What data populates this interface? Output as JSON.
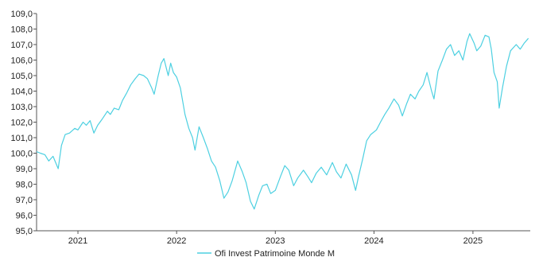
{
  "chart_data": {
    "type": "line",
    "title": "",
    "xlabel": "",
    "ylabel": "",
    "x_range": [
      "2020-08-01",
      "2025-08-01"
    ],
    "ylim": [
      95.0,
      109.0
    ],
    "y_ticks": [
      "95,0",
      "96,0",
      "97,0",
      "98,0",
      "99,0",
      "100,0",
      "101,0",
      "102,0",
      "103,0",
      "104,0",
      "105,0",
      "106,0",
      "107,0",
      "108,0",
      "109,0"
    ],
    "x_ticks": [
      {
        "date": "2021-01-01",
        "label": "2021"
      },
      {
        "date": "2022-01-01",
        "label": "2022"
      },
      {
        "date": "2023-01-01",
        "label": "2023"
      },
      {
        "date": "2024-01-01",
        "label": "2024"
      },
      {
        "date": "2025-01-01",
        "label": "2025"
      }
    ],
    "grid": false,
    "legend": "bottom",
    "series": [
      {
        "name": "Ofi Invest Patrimoine Monde M",
        "color": "#4dd0e1",
        "points": [
          [
            "2020-08-01",
            100.1
          ],
          [
            "2020-08-15",
            100.0
          ],
          [
            "2020-09-01",
            99.9
          ],
          [
            "2020-09-15",
            99.5
          ],
          [
            "2020-10-01",
            99.8
          ],
          [
            "2020-10-20",
            99.0
          ],
          [
            "2020-11-01",
            100.5
          ],
          [
            "2020-11-15",
            101.2
          ],
          [
            "2020-12-01",
            101.3
          ],
          [
            "2020-12-20",
            101.6
          ],
          [
            "2021-01-01",
            101.5
          ],
          [
            "2021-01-20",
            102.0
          ],
          [
            "2021-02-01",
            101.8
          ],
          [
            "2021-02-15",
            102.1
          ],
          [
            "2021-03-01",
            101.3
          ],
          [
            "2021-03-15",
            101.8
          ],
          [
            "2021-04-01",
            102.2
          ],
          [
            "2021-04-20",
            102.7
          ],
          [
            "2021-05-01",
            102.5
          ],
          [
            "2021-05-15",
            102.9
          ],
          [
            "2021-06-01",
            102.8
          ],
          [
            "2021-06-15",
            103.4
          ],
          [
            "2021-07-01",
            103.9
          ],
          [
            "2021-07-15",
            104.4
          ],
          [
            "2021-08-01",
            104.8
          ],
          [
            "2021-08-15",
            105.1
          ],
          [
            "2021-09-01",
            105.0
          ],
          [
            "2021-09-15",
            104.8
          ],
          [
            "2021-10-01",
            104.2
          ],
          [
            "2021-10-10",
            103.8
          ],
          [
            "2021-10-25",
            105.0
          ],
          [
            "2021-11-05",
            105.8
          ],
          [
            "2021-11-15",
            106.1
          ],
          [
            "2021-11-25",
            105.4
          ],
          [
            "2021-12-01",
            105.0
          ],
          [
            "2021-12-10",
            105.8
          ],
          [
            "2021-12-20",
            105.2
          ],
          [
            "2022-01-01",
            104.9
          ],
          [
            "2022-01-15",
            104.2
          ],
          [
            "2022-02-01",
            102.5
          ],
          [
            "2022-02-15",
            101.6
          ],
          [
            "2022-03-01",
            101.0
          ],
          [
            "2022-03-10",
            100.2
          ],
          [
            "2022-03-25",
            101.7
          ],
          [
            "2022-04-10",
            101.0
          ],
          [
            "2022-04-25",
            100.3
          ],
          [
            "2022-05-10",
            99.5
          ],
          [
            "2022-05-25",
            99.1
          ],
          [
            "2022-06-10",
            98.2
          ],
          [
            "2022-06-25",
            97.1
          ],
          [
            "2022-07-10",
            97.5
          ],
          [
            "2022-07-25",
            98.2
          ],
          [
            "2022-08-15",
            99.5
          ],
          [
            "2022-09-01",
            98.8
          ],
          [
            "2022-09-15",
            98.1
          ],
          [
            "2022-10-01",
            96.9
          ],
          [
            "2022-10-15",
            96.4
          ],
          [
            "2022-11-01",
            97.3
          ],
          [
            "2022-11-15",
            97.9
          ],
          [
            "2022-12-01",
            98.0
          ],
          [
            "2022-12-15",
            97.4
          ],
          [
            "2023-01-01",
            97.6
          ],
          [
            "2023-01-20",
            98.5
          ],
          [
            "2023-02-05",
            99.2
          ],
          [
            "2023-02-20",
            98.9
          ],
          [
            "2023-03-10",
            97.9
          ],
          [
            "2023-03-25",
            98.4
          ],
          [
            "2023-04-15",
            98.9
          ],
          [
            "2023-05-01",
            98.5
          ],
          [
            "2023-05-15",
            98.1
          ],
          [
            "2023-06-01",
            98.7
          ],
          [
            "2023-06-20",
            99.1
          ],
          [
            "2023-07-10",
            98.6
          ],
          [
            "2023-07-31",
            99.4
          ],
          [
            "2023-08-15",
            98.8
          ],
          [
            "2023-09-01",
            98.4
          ],
          [
            "2023-09-20",
            99.3
          ],
          [
            "2023-10-10",
            98.6
          ],
          [
            "2023-10-25",
            97.6
          ],
          [
            "2023-11-05",
            98.5
          ],
          [
            "2023-11-20",
            99.6
          ],
          [
            "2023-12-05",
            100.8
          ],
          [
            "2023-12-20",
            101.2
          ],
          [
            "2024-01-10",
            101.5
          ],
          [
            "2024-01-25",
            102.0
          ],
          [
            "2024-02-10",
            102.5
          ],
          [
            "2024-02-25",
            102.9
          ],
          [
            "2024-03-15",
            103.5
          ],
          [
            "2024-04-01",
            103.1
          ],
          [
            "2024-04-15",
            102.4
          ],
          [
            "2024-05-01",
            103.2
          ],
          [
            "2024-05-15",
            103.8
          ],
          [
            "2024-06-01",
            103.5
          ],
          [
            "2024-06-15",
            104.0
          ],
          [
            "2024-07-01",
            104.4
          ],
          [
            "2024-07-15",
            105.2
          ],
          [
            "2024-08-01",
            104.0
          ],
          [
            "2024-08-10",
            103.5
          ],
          [
            "2024-08-25",
            105.3
          ],
          [
            "2024-09-10",
            106.0
          ],
          [
            "2024-09-25",
            106.7
          ],
          [
            "2024-10-10",
            107.0
          ],
          [
            "2024-10-25",
            106.3
          ],
          [
            "2024-11-10",
            106.6
          ],
          [
            "2024-11-25",
            106.0
          ],
          [
            "2024-12-10",
            107.2
          ],
          [
            "2024-12-20",
            107.7
          ],
          [
            "2025-01-05",
            107.1
          ],
          [
            "2025-01-15",
            106.6
          ],
          [
            "2025-01-30",
            106.9
          ],
          [
            "2025-02-15",
            107.6
          ],
          [
            "2025-03-01",
            107.5
          ],
          [
            "2025-03-10",
            106.7
          ],
          [
            "2025-03-20",
            105.2
          ],
          [
            "2025-04-01",
            104.6
          ],
          [
            "2025-04-08",
            102.9
          ],
          [
            "2025-04-20",
            104.2
          ],
          [
            "2025-05-05",
            105.6
          ],
          [
            "2025-05-20",
            106.6
          ],
          [
            "2025-06-10",
            107.0
          ],
          [
            "2025-06-25",
            106.7
          ],
          [
            "2025-07-10",
            107.1
          ],
          [
            "2025-07-25",
            107.4
          ]
        ]
      }
    ]
  }
}
